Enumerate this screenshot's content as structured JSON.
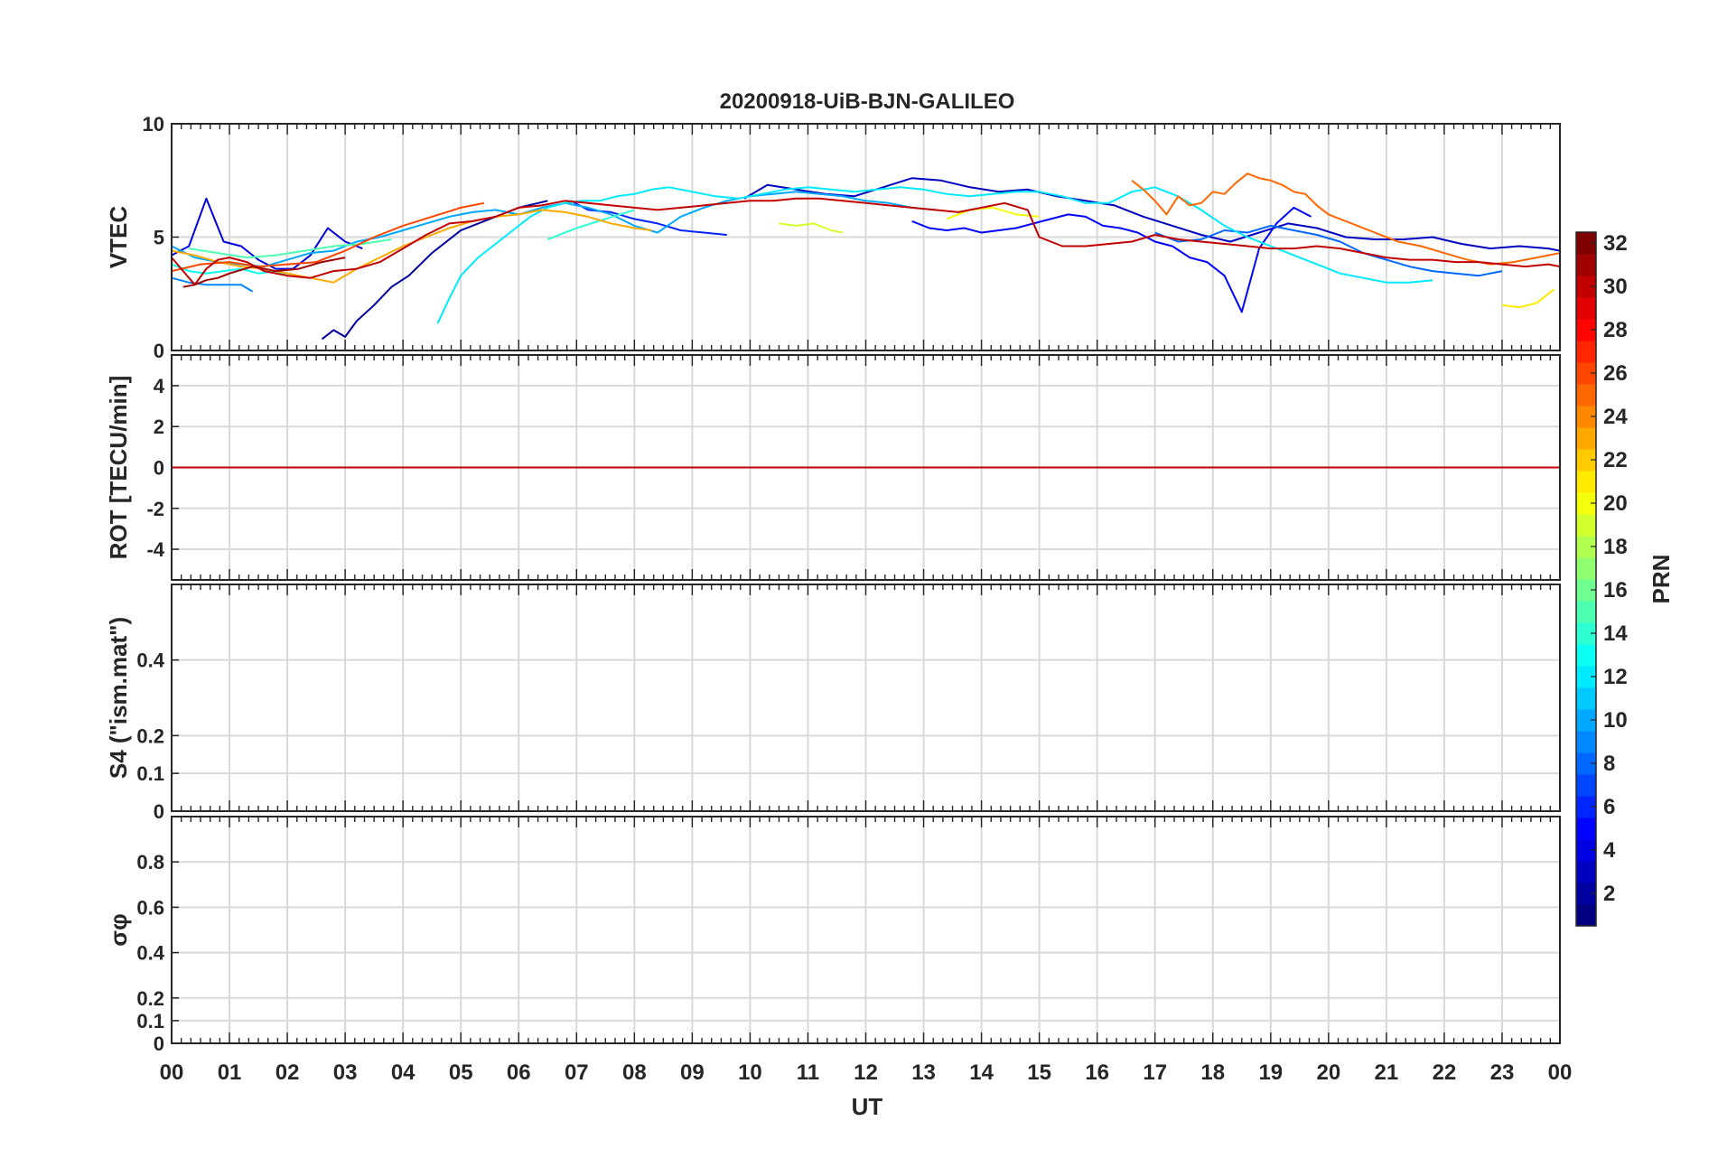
{
  "title": "20200918-UiB-BJN-GALILEO",
  "chart_data": {
    "type": "line",
    "title": "20200918-UiB-BJN-GALILEO",
    "xlabel": "UT",
    "x_range_hours": [
      0,
      24
    ],
    "x_tick_labels": [
      "00",
      "01",
      "02",
      "03",
      "04",
      "05",
      "06",
      "07",
      "08",
      "09",
      "10",
      "11",
      "12",
      "13",
      "14",
      "15",
      "16",
      "17",
      "18",
      "19",
      "20",
      "21",
      "22",
      "23",
      "00"
    ],
    "grid": true,
    "colorbar": {
      "label": "PRN",
      "range": [
        1,
        32
      ],
      "tick_values": [
        2,
        4,
        6,
        8,
        10,
        12,
        14,
        16,
        18,
        20,
        22,
        24,
        26,
        28,
        30,
        32
      ],
      "tick_labels": [
        "2",
        "4",
        "6",
        "8",
        "10",
        "12",
        "14",
        "16",
        "18",
        "20",
        "22",
        "24",
        "26",
        "28",
        "30",
        "32"
      ],
      "colormap": "jet",
      "location": "right"
    },
    "panels": [
      {
        "id": "vtec",
        "ylabel": "VTEC",
        "ylim": [
          0,
          10
        ],
        "y_tick_values": [
          0,
          5,
          10
        ],
        "y_tick_labels": [
          "0",
          "5",
          "10"
        ],
        "series": [
          {
            "prn": 2,
            "x": [
              2.6,
              2.8,
              3.0,
              3.2,
              3.5,
              3.8,
              4.1,
              4.5,
              5.0,
              5.5,
              6.0,
              6.5
            ],
            "y": [
              0.5,
              0.9,
              0.6,
              1.3,
              2.0,
              2.8,
              3.3,
              4.3,
              5.3,
              5.8,
              6.3,
              6.6
            ]
          },
          {
            "prn": 3,
            "x": [
              9.9,
              10.3,
              10.8,
              11.3,
              11.8,
              12.3,
              12.8,
              13.3,
              13.8,
              14.3,
              14.8,
              15.3,
              15.8,
              16.3,
              16.8,
              17.3,
              17.8,
              18.3,
              18.8,
              19.3,
              19.8,
              20.3,
              20.8,
              21.3,
              21.8,
              22.3,
              22.8,
              23.3,
              23.8,
              24.0
            ],
            "y": [
              6.7,
              7.3,
              7.1,
              6.9,
              6.8,
              7.2,
              7.6,
              7.5,
              7.2,
              7.0,
              7.1,
              6.8,
              6.6,
              6.4,
              5.9,
              5.5,
              5.1,
              4.8,
              5.2,
              5.6,
              5.4,
              5.0,
              4.9,
              4.9,
              5.0,
              4.7,
              4.5,
              4.6,
              4.5,
              4.4
            ]
          },
          {
            "prn": 4,
            "x": [
              0.0,
              0.3,
              0.6,
              0.9,
              1.2,
              1.5,
              1.8,
              2.1,
              2.4,
              2.7,
              3.0,
              3.3
            ],
            "y": [
              4.2,
              4.6,
              6.7,
              4.8,
              4.6,
              4.0,
              3.6,
              3.6,
              4.2,
              5.4,
              4.8,
              4.5
            ]
          },
          {
            "prn": 5,
            "x": [
              12.8,
              13.1,
              13.4,
              13.7,
              14.0,
              14.3,
              14.6,
              14.9,
              15.2,
              15.5,
              15.8,
              16.1,
              16.4,
              16.7,
              17.0,
              17.3,
              17.6,
              17.9,
              18.2,
              18.5,
              18.8,
              19.1,
              19.4,
              19.7
            ],
            "y": [
              5.7,
              5.4,
              5.3,
              5.4,
              5.2,
              5.3,
              5.4,
              5.6,
              5.8,
              6.0,
              5.9,
              5.5,
              5.4,
              5.2,
              4.8,
              4.6,
              4.1,
              3.9,
              3.3,
              1.7,
              4.5,
              5.6,
              6.3,
              5.9
            ]
          },
          {
            "prn": 6,
            "x": [
              6.9,
              7.2,
              7.6,
              8.0,
              8.4,
              8.8,
              9.2,
              9.6
            ],
            "y": [
              6.6,
              6.2,
              6.1,
              5.8,
              5.6,
              5.3,
              5.2,
              5.1
            ]
          },
          {
            "prn": 8,
            "x": [
              17.0,
              17.4,
              17.8,
              18.2,
              18.6,
              19.0,
              19.4,
              19.8,
              20.2,
              20.6,
              21.0,
              21.4,
              21.8,
              22.2,
              22.6,
              23.0
            ],
            "y": [
              5.2,
              4.8,
              4.9,
              5.3,
              5.2,
              5.5,
              5.3,
              5.1,
              4.8,
              4.3,
              4.0,
              3.7,
              3.5,
              3.4,
              3.3,
              3.5
            ]
          },
          {
            "prn": 9,
            "x": [
              0.0,
              0.3,
              0.6,
              0.9,
              1.2,
              1.4
            ],
            "y": [
              3.2,
              3.0,
              2.9,
              2.9,
              2.9,
              2.6
            ]
          },
          {
            "prn": 10,
            "x": [
              0.0,
              0.4,
              0.8,
              1.2,
              1.6,
              2.0,
              2.4,
              2.8,
              3.2,
              3.6,
              4.0,
              4.4,
              4.8,
              5.2,
              5.6,
              6.0,
              6.4,
              6.8,
              7.2,
              7.6,
              8.0,
              8.4,
              8.8,
              9.2,
              9.6,
              10.0,
              10.4,
              10.8,
              11.2,
              11.6,
              12.0,
              12.4,
              12.8,
              13.2
            ],
            "y": [
              4.6,
              4.1,
              3.9,
              3.8,
              3.7,
              4.0,
              4.3,
              4.4,
              4.8,
              5.0,
              5.3,
              5.6,
              5.9,
              6.1,
              6.2,
              6.0,
              6.3,
              6.5,
              6.3,
              6.0,
              5.5,
              5.2,
              5.9,
              6.3,
              6.6,
              6.8,
              6.9,
              7.0,
              6.9,
              6.8,
              6.6,
              6.5,
              6.3,
              6.2
            ]
          },
          {
            "prn": 12,
            "x": [
              4.6,
              4.8,
              5.0,
              5.3,
              5.6,
              5.9,
              6.2,
              6.5,
              6.8,
              7.1,
              7.4,
              7.7,
              8.0,
              8.3,
              8.6,
              9.0,
              9.4,
              9.8,
              10.2,
              10.6,
              11.0,
              11.4,
              11.8,
              12.2,
              12.6,
              13.0,
              13.4,
              13.8,
              14.2,
              14.6,
              15.0,
              15.4,
              15.8,
              16.2,
              16.6,
              17.0,
              17.4,
              17.8,
              18.2,
              18.6,
              19.0,
              19.4,
              19.8,
              20.2,
              20.6,
              21.0,
              21.4,
              21.8
            ],
            "y": [
              1.2,
              2.3,
              3.3,
              4.1,
              4.7,
              5.3,
              5.9,
              6.3,
              6.5,
              6.6,
              6.6,
              6.8,
              6.9,
              7.1,
              7.2,
              7.0,
              6.8,
              6.7,
              6.9,
              7.1,
              7.2,
              7.1,
              7.0,
              7.1,
              7.2,
              7.1,
              6.9,
              6.8,
              6.9,
              7.0,
              7.0,
              6.8,
              6.5,
              6.5,
              7.0,
              7.2,
              6.8,
              6.2,
              5.5,
              5.0,
              4.6,
              4.2,
              3.8,
              3.4,
              3.2,
              3.0,
              3.0,
              3.1
            ]
          },
          {
            "prn": 13,
            "x": [
              0.0,
              0.3,
              0.6,
              0.9,
              1.2,
              1.5,
              1.8,
              2.0
            ],
            "y": [
              3.8,
              3.5,
              3.4,
              3.5,
              3.6,
              3.4,
              3.5,
              3.3
            ]
          },
          {
            "prn": 14,
            "x": [
              6.5,
              7.0,
              7.5,
              8.0
            ],
            "y": [
              4.9,
              5.4,
              5.8,
              6.2
            ]
          },
          {
            "prn": 15,
            "x": [
              0.3,
              0.8,
              1.3,
              1.8,
              2.3,
              2.8,
              3.3,
              3.8
            ],
            "y": [
              4.5,
              4.3,
              4.1,
              4.2,
              4.4,
              4.6,
              4.7,
              4.9
            ]
          },
          {
            "prn": 19,
            "x": [
              10.5,
              10.8,
              11.1,
              11.4,
              11.6
            ],
            "y": [
              5.6,
              5.5,
              5.6,
              5.3,
              5.2
            ]
          },
          {
            "prn": 20,
            "x": [
              13.4,
              13.8,
              14.2,
              14.6,
              15.0
            ],
            "y": [
              5.8,
              6.2,
              6.3,
              6.0,
              5.9
            ]
          },
          {
            "prn": 21,
            "x": [
              23.0,
              23.3,
              23.6,
              23.9
            ],
            "y": [
              2.0,
              1.9,
              2.1,
              2.7
            ]
          },
          {
            "prn": 23,
            "x": [
              0.0,
              0.4,
              0.8,
              1.2,
              1.6,
              2.0,
              2.4,
              2.8,
              3.2,
              3.6,
              4.0,
              4.4,
              4.8,
              5.2,
              5.6,
              6.0,
              6.4,
              6.8,
              7.2,
              7.6,
              8.0,
              8.3
            ],
            "y": [
              4.4,
              4.2,
              3.9,
              3.7,
              3.6,
              3.4,
              3.2,
              3.0,
              3.6,
              4.1,
              4.6,
              5.0,
              5.4,
              5.7,
              5.9,
              6.0,
              6.2,
              6.1,
              5.9,
              5.6,
              5.4,
              5.3
            ]
          },
          {
            "prn": 25,
            "x": [
              16.6,
              16.8,
              17.0,
              17.2,
              17.4,
              17.6,
              17.8,
              18.0,
              18.2,
              18.4,
              18.6,
              18.8,
              19.0,
              19.2,
              19.4,
              19.6,
              19.8,
              20.0,
              20.4,
              20.8,
              21.2,
              21.6,
              22.0,
              22.4,
              22.8,
              23.2,
              23.6,
              24.0
            ],
            "y": [
              7.5,
              7.1,
              6.6,
              6.0,
              6.8,
              6.4,
              6.5,
              7.0,
              6.9,
              7.4,
              7.8,
              7.6,
              7.5,
              7.3,
              7.0,
              6.9,
              6.4,
              6.0,
              5.6,
              5.2,
              4.8,
              4.6,
              4.3,
              4.0,
              3.8,
              3.9,
              4.1,
              4.3
            ]
          },
          {
            "prn": 26,
            "x": [
              0.0,
              0.5,
              1.0,
              1.5,
              2.0,
              2.5,
              3.0,
              3.5,
              4.0,
              4.5,
              5.0,
              5.4
            ],
            "y": [
              3.5,
              3.8,
              3.9,
              3.7,
              3.8,
              3.9,
              4.4,
              5.0,
              5.5,
              5.9,
              6.3,
              6.5
            ]
          },
          {
            "prn": 30,
            "x": [
              0.0,
              0.2,
              0.4,
              0.6,
              0.8,
              1.0,
              1.3,
              1.6,
              2.0,
              2.4,
              2.8,
              3.2,
              3.6,
              4.0,
              4.4,
              4.8,
              5.2,
              5.6,
              6.0,
              6.4,
              6.8,
              7.2,
              7.6,
              8.0,
              8.4,
              8.8,
              9.2,
              9.6,
              10.0,
              10.4,
              10.8,
              11.2,
              11.6,
              12.0,
              12.4,
              12.8,
              13.2,
              13.6,
              14.0,
              14.4,
              14.8,
              15.0,
              15.4,
              15.8,
              16.2,
              16.6,
              17.0,
              17.4,
              17.8,
              18.2,
              18.6,
              19.0,
              19.4,
              19.8,
              20.2,
              20.6,
              21.0,
              21.4,
              21.8,
              22.2,
              22.6,
              23.0,
              23.4,
              23.8,
              24.0
            ],
            "y": [
              4.1,
              3.5,
              2.9,
              3.6,
              4.0,
              4.1,
              3.9,
              3.5,
              3.3,
              3.2,
              3.5,
              3.6,
              3.9,
              4.5,
              5.1,
              5.6,
              5.7,
              5.9,
              6.3,
              6.4,
              6.6,
              6.5,
              6.4,
              6.3,
              6.2,
              6.3,
              6.4,
              6.5,
              6.6,
              6.6,
              6.7,
              6.7,
              6.6,
              6.5,
              6.4,
              6.3,
              6.2,
              6.1,
              6.3,
              6.5,
              6.2,
              5.0,
              4.6,
              4.6,
              4.7,
              4.8,
              5.1,
              4.9,
              4.8,
              4.7,
              4.6,
              4.5,
              4.5,
              4.6,
              4.5,
              4.3,
              4.1,
              4.0,
              4.0,
              3.9,
              3.9,
              3.8,
              3.7,
              3.8,
              3.7
            ]
          },
          {
            "prn": 31,
            "x": [
              0.2,
              0.4,
              0.6,
              0.8,
              1.0,
              1.4,
              1.8,
              2.2,
              2.6,
              3.0
            ],
            "y": [
              2.8,
              2.9,
              3.1,
              3.2,
              3.4,
              3.7,
              3.5,
              3.6,
              3.9,
              4.1
            ]
          }
        ]
      },
      {
        "id": "rot",
        "ylabel": "ROT [TECU/min]",
        "ylim": [
          -5.5,
          5.5
        ],
        "y_tick_values": [
          -4,
          -2,
          0,
          2,
          4
        ],
        "y_tick_labels": [
          "-4",
          "-2",
          "0",
          "2",
          "4"
        ],
        "series": [
          {
            "prn": 4,
            "x": [
              0,
              24
            ],
            "y": [
              0,
              0
            ]
          },
          {
            "prn": 10,
            "x": [
              0,
              24
            ],
            "y": [
              0,
              0
            ]
          },
          {
            "prn": 13,
            "x": [
              0,
              24
            ],
            "y": [
              0,
              0
            ]
          },
          {
            "prn": 20,
            "x": [
              0,
              24
            ],
            "y": [
              0,
              0
            ]
          },
          {
            "prn": 26,
            "x": [
              0,
              24
            ],
            "y": [
              0,
              0
            ]
          },
          {
            "prn": 30,
            "x": [
              0,
              24
            ],
            "y": [
              0,
              0
            ]
          }
        ]
      },
      {
        "id": "s4",
        "ylabel": "S4 (\"ism.mat\")",
        "ylim": [
          0,
          0.6
        ],
        "y_tick_values": [
          0,
          0.1,
          0.2,
          0.4
        ],
        "y_tick_labels": [
          "0",
          "0.1",
          "0.2",
          "0.4"
        ],
        "series": []
      },
      {
        "id": "sigma_phi",
        "ylabel": "σφ",
        "ylim": [
          0,
          1
        ],
        "y_tick_values": [
          0,
          0.1,
          0.2,
          0.4,
          0.6,
          0.8
        ],
        "y_tick_labels": [
          "0",
          "0.1",
          "0.2",
          "0.4",
          "0.6",
          "0.8"
        ],
        "series": []
      }
    ]
  }
}
